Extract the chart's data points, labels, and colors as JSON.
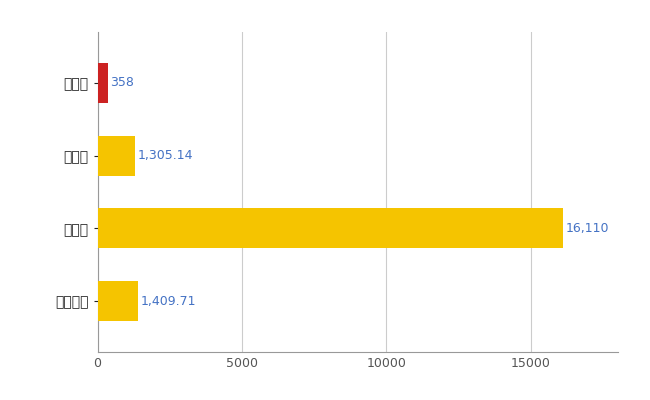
{
  "categories": [
    "苓北町",
    "県平均",
    "県最大",
    "全国平均"
  ],
  "values": [
    358,
    1305.14,
    16110,
    1409.71
  ],
  "bar_colors": [
    "#cc2222",
    "#f5c400",
    "#f5c400",
    "#f5c400"
  ],
  "value_labels": [
    "358",
    "1,305.14",
    "16,110",
    "1,409.71"
  ],
  "xlim": [
    0,
    18000
  ],
  "xticks": [
    0,
    5000,
    10000,
    15000
  ],
  "xtick_labels": [
    "0",
    "5000",
    "10000",
    "15000"
  ],
  "grid_color": "#cccccc",
  "background_color": "#ffffff",
  "bar_height": 0.55,
  "label_fontsize": 10,
  "tick_fontsize": 9,
  "value_label_fontsize": 9
}
